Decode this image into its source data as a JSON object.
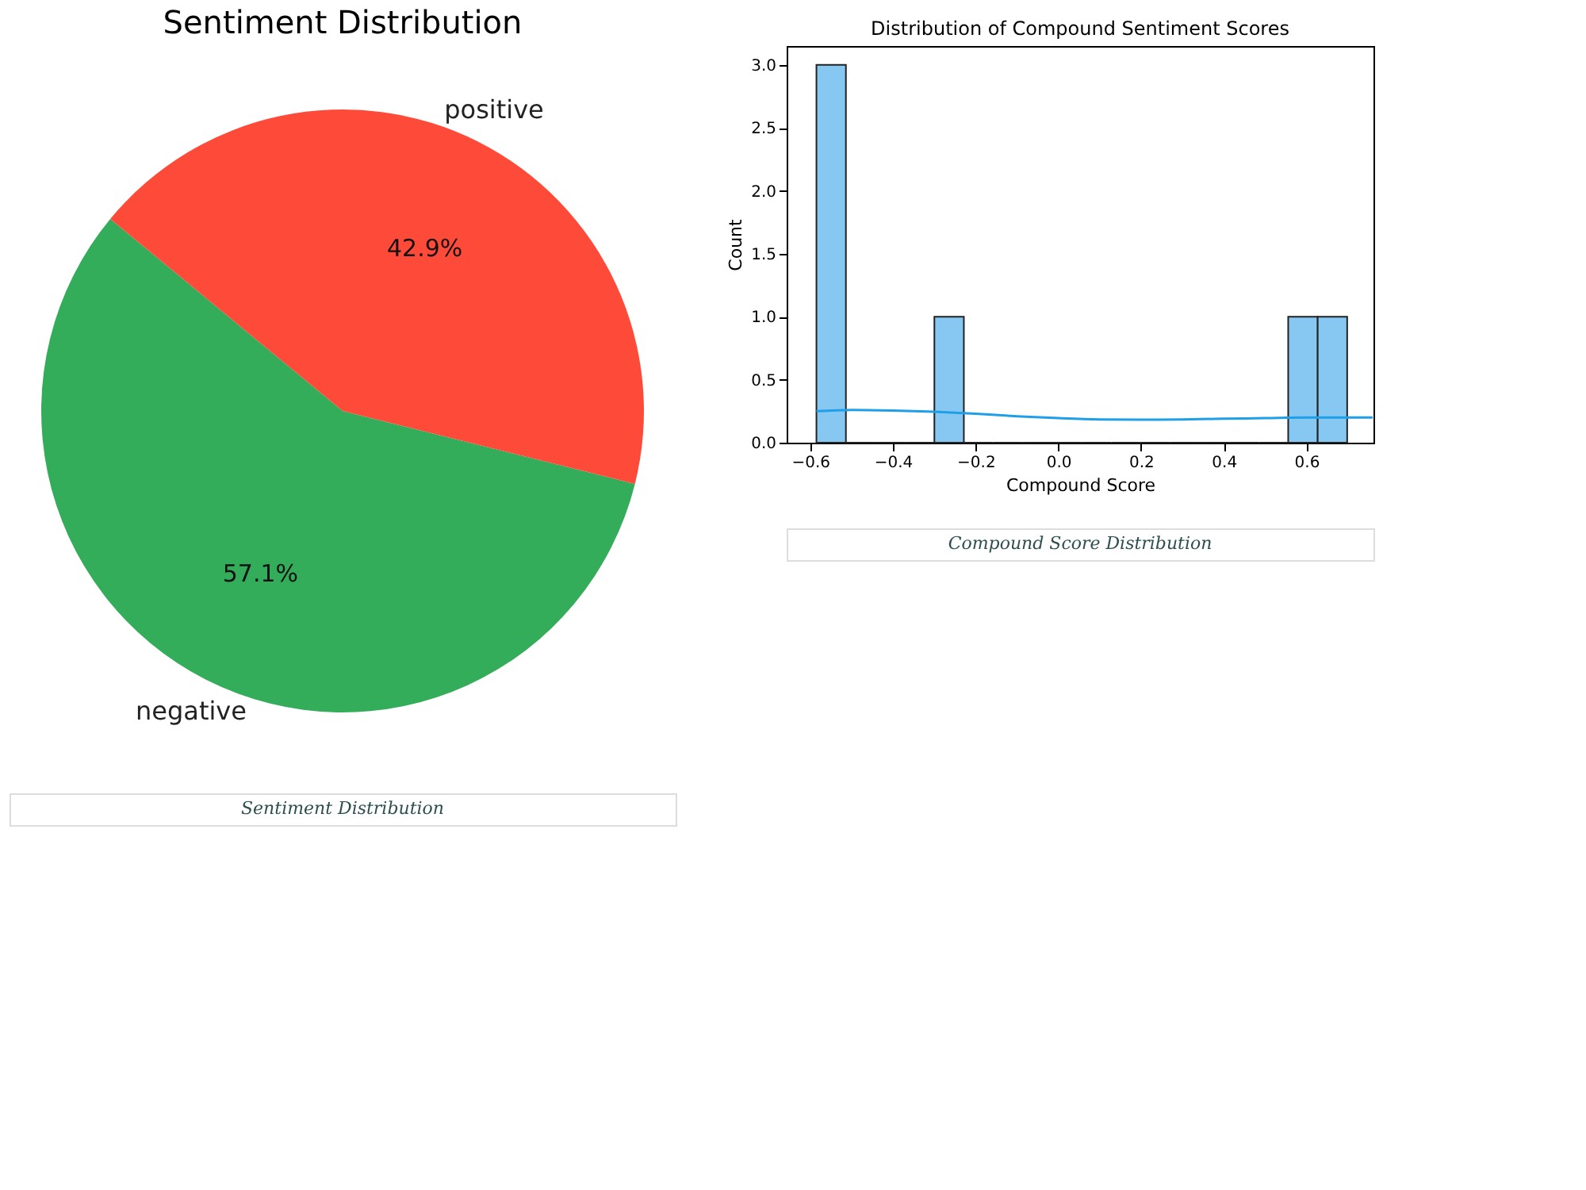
{
  "chart_data": [
    {
      "type": "pie",
      "title": "Sentiment Distribution",
      "categories": [
        "negative",
        "positive"
      ],
      "values": [
        57.1,
        42.9
      ],
      "colors": [
        "#34ad5a",
        "#fe4a38"
      ],
      "value_labels": [
        "57.1%",
        "42.9%"
      ],
      "annotations": [
        "Sentiment Distribution"
      ]
    },
    {
      "type": "histogram",
      "title": "Distribution of Compound Sentiment Scores",
      "xlabel": "Compound Score",
      "ylabel": "Count",
      "bins": [
        -0.585,
        -0.5137,
        -0.4424,
        -0.3711,
        -0.2998,
        -0.2285,
        -0.1572,
        -0.0859,
        -0.0146,
        0.0567,
        0.128,
        0.1993,
        0.2706,
        0.3419,
        0.4132,
        0.4845,
        0.5558,
        0.6271,
        0.6984
      ],
      "series": [
        {
          "type": "histogram",
          "color": "#87c8f2",
          "values": [
            3,
            0,
            0,
            0,
            1,
            0,
            0,
            0,
            0,
            0,
            0,
            0,
            0,
            0,
            0,
            0,
            1,
            1
          ]
        },
        {
          "type": "line",
          "color": "#1f9fe8",
          "x": [
            -0.585,
            -0.5,
            -0.4,
            -0.3,
            -0.2,
            -0.1,
            0.0,
            0.1,
            0.2,
            0.3,
            0.4,
            0.5,
            0.6,
            0.7,
            0.76
          ],
          "values": [
            0.25,
            0.26,
            0.255,
            0.245,
            0.23,
            0.21,
            0.195,
            0.185,
            0.183,
            0.185,
            0.19,
            0.195,
            0.2,
            0.2,
            0.2
          ]
        }
      ],
      "xlim": [
        -0.657,
        0.762
      ],
      "ylim": [
        0,
        3.15
      ],
      "xticks": [
        {
          "value": -0.6,
          "label": "−0.6"
        },
        {
          "value": -0.4,
          "label": "−0.4"
        },
        {
          "value": -0.2,
          "label": "−0.2"
        },
        {
          "value": 0,
          "label": "0.0"
        },
        {
          "value": 0.2,
          "label": "0.2"
        },
        {
          "value": 0.4,
          "label": "0.4"
        },
        {
          "value": 0.6,
          "label": "0.6"
        }
      ],
      "yticks": [
        {
          "value": 0,
          "label": "0.0"
        },
        {
          "value": 0.5,
          "label": "0.5"
        },
        {
          "value": 1,
          "label": "1.0"
        },
        {
          "value": 1.5,
          "label": "1.5"
        },
        {
          "value": 2,
          "label": "2.0"
        },
        {
          "value": 2.5,
          "label": "2.5"
        },
        {
          "value": 3,
          "label": "3.0"
        }
      ],
      "grid": false,
      "annotations": [
        "Compound Score Distribution"
      ]
    }
  ]
}
